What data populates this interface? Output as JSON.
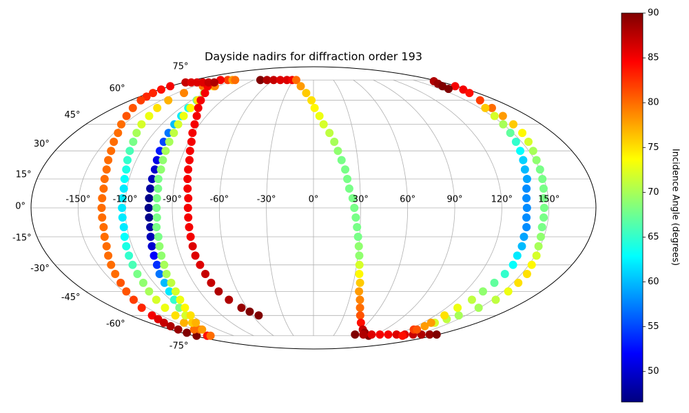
{
  "chart_data": {
    "type": "scatter",
    "projection": "mollweide",
    "title": "Dayside nadirs for diffraction order 193",
    "colormap": "jet",
    "grid": true,
    "xlim": [
      -180,
      180
    ],
    "ylim": [
      -90,
      90
    ],
    "xticks": [
      {
        "value": -150,
        "label": "-150°"
      },
      {
        "value": -120,
        "label": "-120°"
      },
      {
        "value": -90,
        "label": "-90°"
      },
      {
        "value": -60,
        "label": "-60°"
      },
      {
        "value": -30,
        "label": "-30°"
      },
      {
        "value": 0,
        "label": "0°"
      },
      {
        "value": 30,
        "label": "30°"
      },
      {
        "value": 60,
        "label": "60°"
      },
      {
        "value": 90,
        "label": "90°"
      },
      {
        "value": 120,
        "label": "120°"
      },
      {
        "value": 150,
        "label": "150°"
      }
    ],
    "yticks": [
      {
        "value": -75,
        "label": "-75°"
      },
      {
        "value": -60,
        "label": "-60°"
      },
      {
        "value": -45,
        "label": "-45°"
      },
      {
        "value": -30,
        "label": "-30°"
      },
      {
        "value": -15,
        "label": "-15°"
      },
      {
        "value": 0,
        "label": "0°"
      },
      {
        "value": 15,
        "label": "15°"
      },
      {
        "value": 30,
        "label": "30°"
      },
      {
        "value": 45,
        "label": "45°"
      },
      {
        "value": 60,
        "label": "60°"
      },
      {
        "value": 75,
        "label": "75°"
      }
    ],
    "colorbar": {
      "label": "Incidence Angle (degrees)",
      "lim": [
        46.6,
        90
      ],
      "ticks": [
        50,
        55,
        60,
        65,
        70,
        75,
        80,
        85,
        90
      ]
    },
    "series": [
      {
        "x": [
          -180,
          -178,
          -176,
          -173,
          -170,
          -163,
          -157,
          -152,
          -147,
          -144,
          -141,
          -139,
          -137,
          -136,
          -135,
          -135,
          -135,
          -135,
          -135,
          -136,
          -137,
          -139,
          -141,
          -143,
          -145,
          -148,
          -151,
          -155,
          -159,
          -161,
          -164,
          -167,
          -170,
          -173,
          -176
        ],
        "y": [
          70,
          67.5,
          65,
          62.5,
          60,
          55,
          50,
          45,
          40,
          35,
          30,
          25,
          20,
          15,
          10,
          5,
          0,
          -5,
          -10,
          -15,
          -20,
          -25,
          -30,
          -35,
          -40,
          -45,
          -50,
          -55,
          -60,
          -62.5,
          -65,
          -67.5,
          -70,
          -72.5,
          -75
        ],
        "values": [
          85,
          84,
          83,
          83,
          82,
          81,
          81,
          80,
          80,
          80,
          80,
          80,
          80,
          80,
          80,
          80,
          80,
          80,
          80,
          80,
          80,
          80,
          80,
          80,
          81,
          81,
          82,
          83,
          85,
          86,
          87,
          88,
          89,
          90,
          90
        ]
      },
      {
        "x": [
          -129,
          -139,
          -142,
          -143,
          -141,
          -138,
          -136,
          -133,
          -130,
          -128,
          -126,
          -124,
          -123,
          -122,
          -122,
          -122,
          -122,
          -122,
          -123,
          -124,
          -125,
          -126,
          -127,
          -128,
          -130,
          -132,
          -134,
          -136,
          -142,
          -150,
          -160
        ],
        "y": [
          75,
          70,
          65,
          60,
          55,
          50,
          45,
          40,
          35,
          30,
          25,
          20,
          15,
          10,
          5,
          0,
          -5,
          -10,
          -15,
          -20,
          -25,
          -30,
          -35,
          -40,
          -45,
          -50,
          -55,
          -60,
          -65,
          -70,
          -75
        ],
        "values": [
          82,
          80,
          79,
          77,
          75,
          73,
          72,
          70,
          68,
          66,
          65,
          64,
          63,
          62,
          62,
          62,
          62,
          62,
          63,
          64,
          65,
          66,
          68,
          69,
          70,
          72,
          73,
          75,
          77,
          80,
          85
        ]
      },
      {
        "x": [
          -122,
          -126,
          -120,
          -115,
          -113,
          -111,
          -110,
          -109,
          -108,
          -107,
          -106,
          -105,
          -105,
          -105,
          -105,
          -105,
          -105,
          -105,
          -106,
          -107,
          -108,
          -109,
          -111,
          -112,
          -114,
          -117,
          -121,
          -126,
          -133,
          -143,
          -160
        ],
        "y": [
          75,
          70,
          65,
          60,
          55,
          50,
          45,
          40,
          35,
          30,
          25,
          20,
          15,
          10,
          5,
          0,
          -5,
          -10,
          -15,
          -20,
          -25,
          -30,
          -35,
          -40,
          -45,
          -50,
          -55,
          -60,
          -65,
          -70,
          -75
        ],
        "values": [
          78,
          74,
          70,
          67,
          64,
          62,
          60,
          57,
          55,
          53,
          51,
          50,
          49,
          48,
          47,
          47,
          47,
          48,
          49,
          50,
          52,
          54,
          57,
          60,
          62,
          65,
          68,
          72,
          76,
          80,
          84
        ]
      },
      {
        "x": [
          -118,
          -124,
          -119,
          -114,
          -111,
          -109,
          -107,
          -105,
          -104,
          -103,
          -102,
          -101,
          -101,
          -100,
          -100,
          -100,
          -100,
          -101,
          -101,
          -102,
          -103,
          -104,
          -106,
          -107,
          -109,
          -112,
          -116,
          -121,
          -129,
          -140,
          -155
        ],
        "y": [
          75,
          70,
          65,
          60,
          55,
          50,
          45,
          40,
          35,
          30,
          25,
          20,
          15,
          10,
          5,
          0,
          -5,
          -10,
          -15,
          -20,
          -25,
          -30,
          -35,
          -40,
          -45,
          -50,
          -55,
          -60,
          -65,
          -70,
          -75
        ],
        "values": [
          80,
          79,
          77,
          75,
          74,
          73,
          72,
          71,
          70,
          70,
          69,
          69,
          68,
          68,
          68,
          68,
          68,
          68,
          68,
          69,
          69,
          70,
          70,
          71,
          72,
          73,
          74,
          75,
          77,
          78,
          80
        ]
      },
      {
        "x": [
          -140,
          -133,
          -119,
          -111,
          -104,
          -98,
          -94,
          -91,
          -88,
          -86,
          -84,
          -83,
          -82,
          -81,
          -80,
          -80,
          -80,
          -80,
          -80,
          -80,
          -80,
          -79,
          -78,
          -77,
          -75,
          -71,
          -65,
          -60,
          -54
        ],
        "y": [
          75,
          70,
          65,
          60,
          55,
          50,
          45,
          40,
          35,
          30,
          25,
          20,
          15,
          10,
          5,
          0,
          -5,
          -10,
          -15,
          -20,
          -25,
          -30,
          -35,
          -40,
          -45,
          -50,
          -55,
          -57.5,
          -60
        ],
        "values": [
          85,
          85,
          85,
          85,
          85,
          85,
          85,
          85,
          85,
          85,
          85,
          85,
          85,
          85,
          85,
          85,
          85,
          85,
          85,
          86,
          86,
          86,
          87,
          87,
          88,
          88,
          89,
          90,
          90
        ]
      },
      {
        "x": [
          -178,
          -170,
          -162,
          -154,
          -146,
          -138
        ],
        "y": [
          73,
          73,
          73,
          73,
          73,
          73
        ],
        "values": [
          87,
          86,
          86,
          86,
          87,
          88
        ]
      },
      {
        "x": [
          -80,
          -70,
          -60,
          -50,
          -40,
          -32
        ],
        "y": [
          75,
          75,
          75,
          75,
          75,
          75
        ],
        "values": [
          90,
          88,
          87,
          86,
          86,
          85
        ]
      },
      {
        "x": [
          -26,
          -16,
          -8,
          -2,
          1,
          5,
          8,
          12,
          15,
          17,
          19,
          21,
          22,
          23,
          25,
          26,
          27,
          28,
          29,
          30,
          31,
          32,
          33,
          35,
          36,
          39,
          42,
          46,
          52,
          62,
          70,
          83
        ],
        "y": [
          75,
          70,
          65,
          60,
          55,
          50,
          45,
          40,
          35,
          30,
          25,
          20,
          15,
          10,
          5,
          0,
          -5,
          -10,
          -15,
          -20,
          -25,
          -30,
          -35,
          -40,
          -45,
          -50,
          -55,
          -60,
          -65,
          -70,
          -72.5,
          -75
        ],
        "values": [
          80,
          78,
          76,
          75,
          74,
          73,
          72,
          71,
          70,
          69,
          68,
          68,
          68,
          68,
          68,
          68,
          68,
          68,
          68,
          69,
          69,
          72,
          74,
          76,
          78,
          79,
          80,
          81,
          84,
          87,
          89,
          90
        ]
      },
      {
        "x": [
          60,
          72,
          84,
          96,
          108,
          120,
          132,
          144,
          156,
          168,
          178
        ],
        "y": [
          -74,
          -74,
          -74,
          -74,
          -74,
          -74,
          -74,
          -74,
          -74,
          -74,
          -74
        ],
        "values": [
          90,
          88,
          86,
          85,
          85,
          86,
          86,
          87,
          88,
          89,
          90
        ]
      },
      {
        "x": [
          178,
          175,
          171,
          164,
          161,
          159,
          158,
          157,
          155,
          153,
          151,
          150,
          149,
          148,
          147,
          147,
          147,
          147,
          148,
          149,
          151,
          152,
          154,
          154,
          154,
          153,
          149,
          143,
          138,
          133,
          130,
          126
        ],
        "y": [
          70,
          67.5,
          65,
          60,
          55,
          50,
          45,
          40,
          35,
          30,
          25,
          20,
          15,
          10,
          5,
          0,
          -5,
          -10,
          -15,
          -20,
          -25,
          -30,
          -35,
          -40,
          -45,
          -50,
          -55,
          -60,
          -62.5,
          -65,
          -67.5,
          -70
        ],
        "values": [
          85,
          85,
          84,
          82,
          80,
          78,
          76,
          74,
          72,
          70,
          69,
          68,
          68,
          68,
          68,
          68,
          68,
          68,
          69,
          70,
          72,
          74,
          75,
          75,
          73,
          71,
          70,
          70,
          71,
          72,
          78,
          82
        ]
      },
      {
        "x": [
          174,
          167,
          162,
          160
        ],
        "y": [
          74,
          72,
          70,
          68
        ],
        "values": [
          88,
          89,
          90,
          90
        ]
      },
      {
        "x": [
          155,
          152,
          150,
          148,
          146,
          144,
          142,
          140,
          139,
          137,
          136,
          136,
          136,
          137,
          137,
          138,
          138,
          139,
          138,
          136,
          134,
          133,
          130,
          129,
          129,
          130,
          134
        ],
        "y": [
          55,
          50,
          45,
          40,
          35,
          30,
          25,
          20,
          15,
          10,
          5,
          0,
          -5,
          -10,
          -15,
          -20,
          -25,
          -30,
          -35,
          -40,
          -45,
          -50,
          -55,
          -60,
          -65,
          -70,
          -75
        ],
        "values": [
          76,
          72,
          70,
          67,
          65,
          63,
          61,
          60,
          59,
          58,
          58,
          58,
          58,
          58,
          59,
          60,
          62,
          63,
          65,
          67,
          69,
          71,
          73,
          75,
          78,
          81,
          84
        ]
      }
    ]
  }
}
